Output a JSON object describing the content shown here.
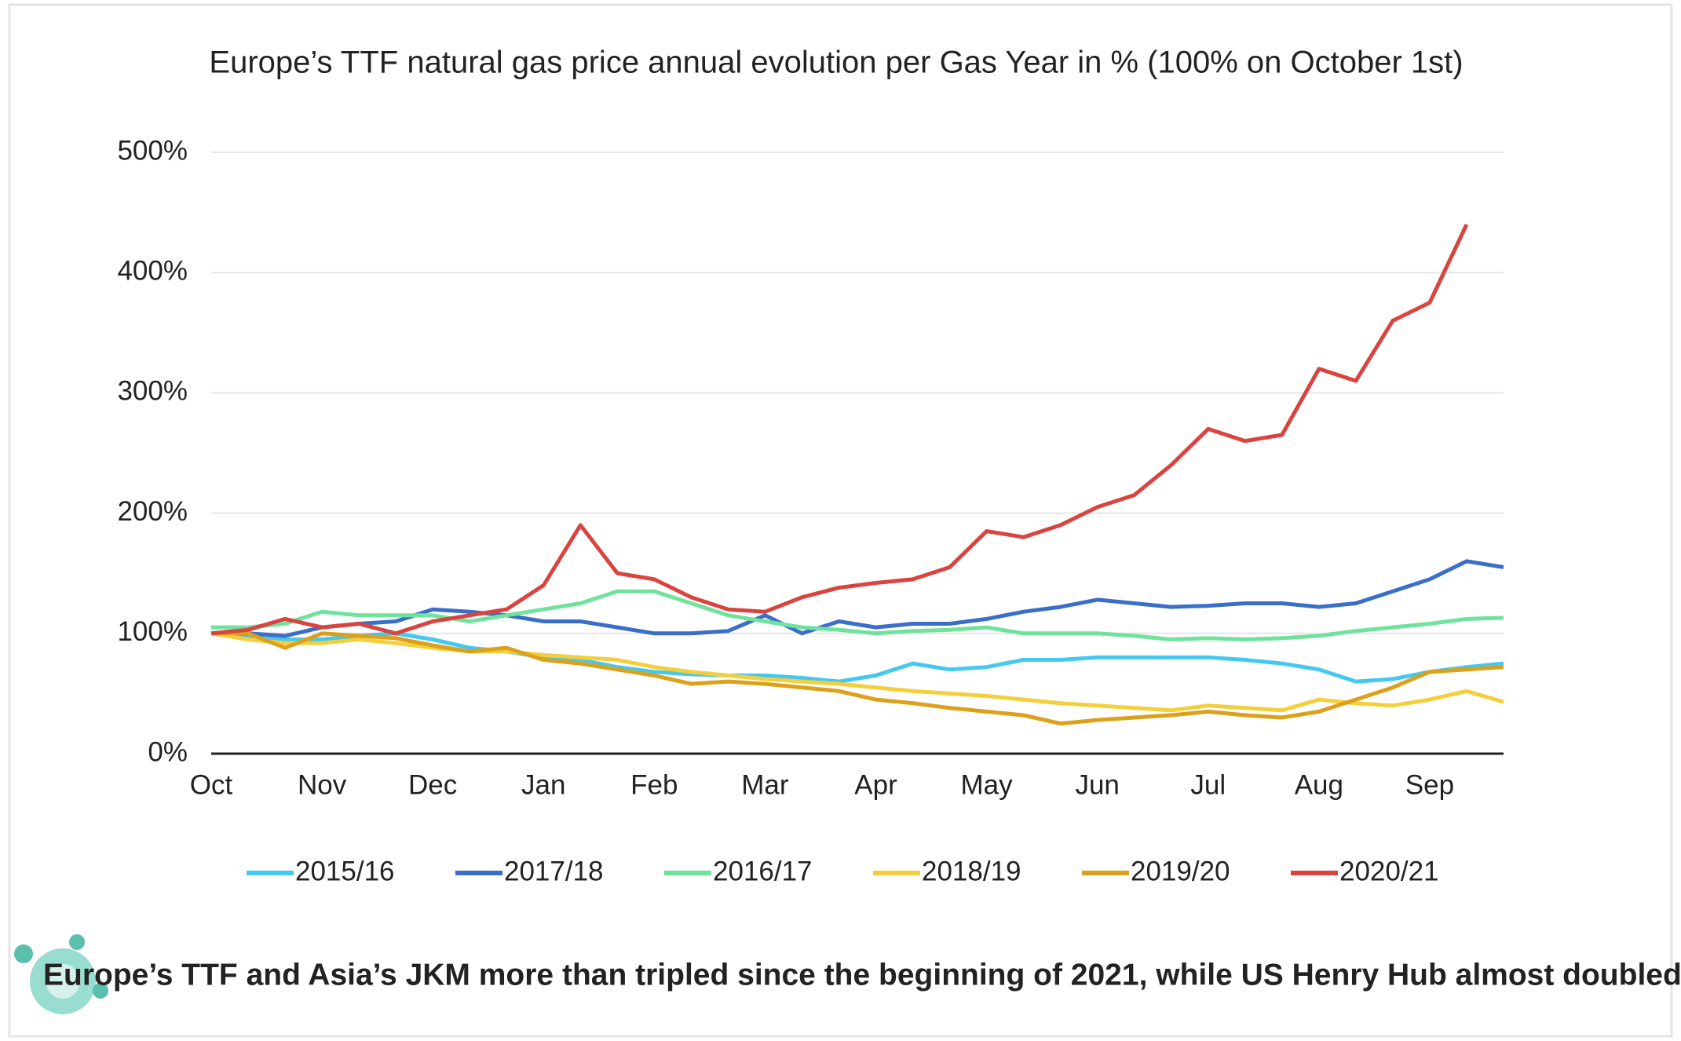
{
  "chart_data": {
    "type": "line",
    "title": "Europe’s TTF natural gas price annual evolution per Gas Year in % (100% on October 1st)",
    "caption": "Europe’s TTF and Asia’s JKM more than tripled since the beginning of 2021, while US Henry Hub almost doubled.",
    "categories": [
      "Oct",
      null,
      null,
      "Nov",
      null,
      null,
      "Dec",
      null,
      null,
      "Jan",
      null,
      null,
      "Feb",
      null,
      null,
      "Mar",
      null,
      null,
      "Apr",
      null,
      null,
      "May",
      null,
      null,
      "Jun",
      null,
      null,
      "Jul",
      null,
      null,
      "Aug",
      null,
      null,
      "Sep",
      null,
      null
    ],
    "series": [
      {
        "name": "2015/16",
        "color": "#45c8ef",
        "values": [
          100,
          97,
          95,
          95,
          98,
          100,
          95,
          88,
          85,
          80,
          78,
          72,
          68,
          66,
          65,
          65,
          63,
          60,
          65,
          75,
          70,
          72,
          78,
          78,
          80,
          80,
          80,
          80,
          78,
          75,
          70,
          60,
          62,
          68,
          72,
          75
        ]
      },
      {
        "name": "2017/18",
        "color": "#3a6fc9",
        "values": [
          100,
          100,
          98,
          105,
          108,
          110,
          120,
          118,
          115,
          110,
          110,
          105,
          100,
          100,
          102,
          115,
          100,
          110,
          105,
          108,
          108,
          112,
          118,
          122,
          128,
          125,
          122,
          123,
          125,
          125,
          122,
          125,
          135,
          145,
          160,
          155
        ]
      },
      {
        "name": "2016/17",
        "color": "#6fe39b",
        "values": [
          105,
          105,
          108,
          118,
          115,
          115,
          115,
          110,
          115,
          120,
          125,
          135,
          135,
          125,
          115,
          110,
          105,
          103,
          100,
          102,
          103,
          105,
          100,
          100,
          100,
          98,
          95,
          96,
          95,
          96,
          98,
          102,
          105,
          108,
          112,
          113
        ]
      },
      {
        "name": "2018/19",
        "color": "#f4cf3c",
        "values": [
          100,
          95,
          92,
          92,
          95,
          92,
          88,
          85,
          85,
          82,
          80,
          78,
          72,
          68,
          65,
          62,
          60,
          58,
          55,
          52,
          50,
          48,
          45,
          42,
          40,
          38,
          36,
          40,
          38,
          36,
          45,
          42,
          40,
          45,
          52,
          43
        ]
      },
      {
        "name": "2019/20",
        "color": "#dda01a",
        "values": [
          100,
          100,
          88,
          100,
          98,
          96,
          90,
          85,
          88,
          78,
          75,
          70,
          65,
          58,
          60,
          58,
          55,
          52,
          45,
          42,
          38,
          35,
          32,
          25,
          28,
          30,
          32,
          35,
          32,
          30,
          35,
          45,
          55,
          68,
          70,
          72
        ]
      },
      {
        "name": "2020/21",
        "color": "#d9443f",
        "values": [
          100,
          103,
          112,
          105,
          108,
          100,
          110,
          115,
          120,
          140,
          190,
          150,
          145,
          130,
          120,
          118,
          130,
          138,
          142,
          145,
          155,
          185,
          180,
          190,
          205,
          215,
          240,
          270,
          260,
          265,
          320,
          310,
          360,
          375,
          440,
          null
        ]
      }
    ],
    "ylim": [
      0,
      500
    ],
    "yticks": [
      {
        "value": 0,
        "label": "0%"
      },
      {
        "value": 100,
        "label": "100%"
      },
      {
        "value": 200,
        "label": "200%"
      },
      {
        "value": 300,
        "label": "300%"
      },
      {
        "value": 400,
        "label": "400%"
      },
      {
        "value": 500,
        "label": "500%"
      }
    ],
    "grid": true
  }
}
